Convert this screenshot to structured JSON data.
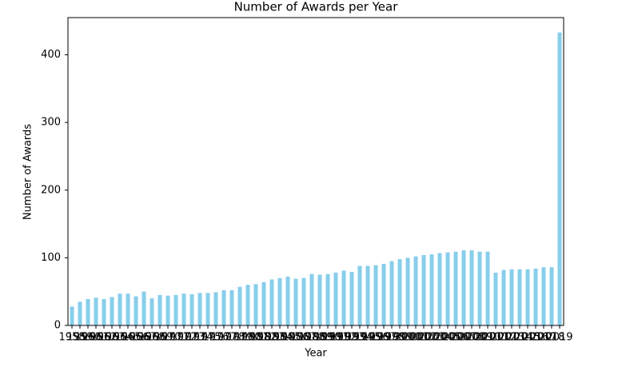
{
  "chart_data": {
    "type": "bar",
    "title": "Number of Awards per Year",
    "x_label": "Year",
    "y_label": "Number of Awards",
    "categories": [
      "1958",
      "1959",
      "1960",
      "1961",
      "1962",
      "1963",
      "1964",
      "1965",
      "1966",
      "1967",
      "1968",
      "1969",
      "1970",
      "1971",
      "1972",
      "1973",
      "1974",
      "1975",
      "1976",
      "1977",
      "1978",
      "1979",
      "1980",
      "1981",
      "1982",
      "1983",
      "1984",
      "1985",
      "1986",
      "1987",
      "1988",
      "1989",
      "1990",
      "1991",
      "1992",
      "1993",
      "1994",
      "1995",
      "1996",
      "1997",
      "1998",
      "1999",
      "2000",
      "2001",
      "2002",
      "2003",
      "2004",
      "2005",
      "2006",
      "2007",
      "2008",
      "2009",
      "2010",
      "2011",
      "2012",
      "2013",
      "2014",
      "2015",
      "2016",
      "2017",
      "2018",
      "2019"
    ],
    "values": [
      28,
      35,
      39,
      41,
      39,
      42,
      47,
      47,
      43,
      50,
      40,
      45,
      44,
      45,
      47,
      46,
      48,
      48,
      49,
      52,
      52,
      57,
      60,
      61,
      64,
      68,
      70,
      72,
      69,
      70,
      76,
      75,
      76,
      78,
      81,
      79,
      88,
      88,
      89,
      91,
      95,
      98,
      100,
      102,
      104,
      105,
      107,
      108,
      109,
      111,
      111,
      109,
      109,
      78,
      82,
      83,
      83,
      83,
      84,
      86,
      86,
      433
    ],
    "color": "#87ceeb",
    "ylim": [
      0,
      455
    ],
    "yticks": [
      0,
      100,
      200,
      300,
      400
    ],
    "grid": false
  }
}
